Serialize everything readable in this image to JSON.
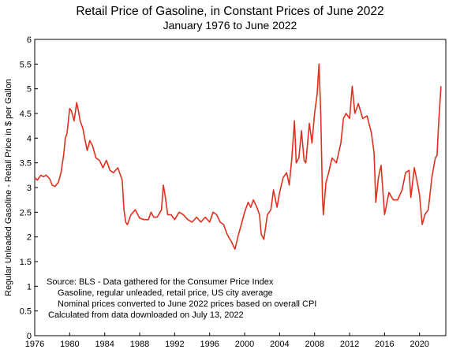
{
  "chart_data": {
    "type": "line",
    "title": "Retail Price of Gasoline, in Constant Prices of June 2022",
    "subtitle": "January 1976 to June 2022",
    "xlabel": "",
    "ylabel": "Regular Unleaded Gasoline - Retail Price in $ per Gallon",
    "xlim": [
      1976,
      2023
    ],
    "ylim": [
      0,
      6
    ],
    "x_ticks": [
      "1976",
      "1980",
      "1984",
      "1988",
      "1992",
      "1996",
      "2000",
      "2004",
      "2008",
      "2012",
      "2016",
      "2020"
    ],
    "y_ticks": [
      "0",
      "0.5",
      "1",
      "1.5",
      "2",
      "2.5",
      "3",
      "3.5",
      "4",
      "4.5",
      "5",
      "5.5",
      "6"
    ],
    "line_color": "#e0301e",
    "grid": false,
    "notes": [
      "Source:  BLS - Data gathered for the Consumer Price Index",
      "Gasoline, regular unleaded, retail price, US city average",
      "Nominal prices converted to June 2022 prices based on overall CPI",
      "Calculated from data downloaded on July 13, 2022"
    ],
    "series": [
      {
        "x": [
          1976.0,
          1976.3,
          1976.7,
          1977.0,
          1977.3,
          1977.7,
          1978.0,
          1978.3,
          1978.7,
          1979.0,
          1979.3,
          1979.5,
          1979.7,
          1980.0,
          1980.2,
          1980.5,
          1980.8,
          1981.0,
          1981.2,
          1981.5,
          1981.8,
          1982.0,
          1982.3,
          1982.6,
          1983.0,
          1983.4,
          1983.8,
          1984.2,
          1984.6,
          1985.0,
          1985.5,
          1986.0,
          1986.2,
          1986.4,
          1986.6,
          1987.0,
          1987.5,
          1988.0,
          1988.5,
          1989.0,
          1989.3,
          1989.6,
          1990.0,
          1990.5,
          1990.7,
          1990.9,
          1991.2,
          1991.6,
          1992.0,
          1992.5,
          1993.0,
          1993.5,
          1994.0,
          1994.5,
          1995.0,
          1995.5,
          1996.0,
          1996.4,
          1996.8,
          1997.2,
          1997.6,
          1998.0,
          1998.5,
          1998.9,
          1999.3,
          1999.7,
          2000.0,
          2000.4,
          2000.7,
          2001.0,
          2001.4,
          2001.7,
          2001.9,
          2002.2,
          2002.6,
          2003.0,
          2003.3,
          2003.7,
          2004.0,
          2004.4,
          2004.8,
          2005.1,
          2005.4,
          2005.7,
          2005.9,
          2006.2,
          2006.5,
          2006.8,
          2007.0,
          2007.4,
          2007.7,
          2008.0,
          2008.3,
          2008.5,
          2008.7,
          2008.9,
          2009.0,
          2009.3,
          2009.6,
          2010.0,
          2010.5,
          2011.0,
          2011.3,
          2011.6,
          2012.0,
          2012.3,
          2012.6,
          2013.0,
          2013.5,
          2014.0,
          2014.5,
          2014.8,
          2015.0,
          2015.3,
          2015.6,
          2016.0,
          2016.5,
          2017.0,
          2017.5,
          2018.0,
          2018.4,
          2018.8,
          2019.0,
          2019.4,
          2019.8,
          2020.0,
          2020.3,
          2020.6,
          2021.0,
          2021.4,
          2021.8,
          2022.0,
          2022.2,
          2022.45
        ],
        "y": [
          3.2,
          3.15,
          3.25,
          3.22,
          3.25,
          3.18,
          3.05,
          3.02,
          3.1,
          3.3,
          3.65,
          4.0,
          4.1,
          4.6,
          4.55,
          4.35,
          4.72,
          4.55,
          4.35,
          4.2,
          3.92,
          3.75,
          3.95,
          3.85,
          3.6,
          3.55,
          3.4,
          3.55,
          3.35,
          3.3,
          3.4,
          3.15,
          2.55,
          2.3,
          2.25,
          2.45,
          2.55,
          2.38,
          2.35,
          2.35,
          2.5,
          2.4,
          2.4,
          2.55,
          3.05,
          2.85,
          2.45,
          2.45,
          2.35,
          2.5,
          2.45,
          2.35,
          2.3,
          2.4,
          2.3,
          2.4,
          2.3,
          2.5,
          2.45,
          2.3,
          2.25,
          2.05,
          1.9,
          1.75,
          2.05,
          2.3,
          2.5,
          2.7,
          2.6,
          2.75,
          2.6,
          2.45,
          2.05,
          1.95,
          2.45,
          2.55,
          2.95,
          2.6,
          2.9,
          3.2,
          3.3,
          3.05,
          3.6,
          4.35,
          3.5,
          3.6,
          4.15,
          3.55,
          3.5,
          4.3,
          3.9,
          4.5,
          4.9,
          5.5,
          4.5,
          2.8,
          2.45,
          3.1,
          3.3,
          3.6,
          3.5,
          3.9,
          4.4,
          4.5,
          4.4,
          5.05,
          4.5,
          4.7,
          4.4,
          4.45,
          4.1,
          3.7,
          2.7,
          3.2,
          3.45,
          2.45,
          2.9,
          2.75,
          2.75,
          2.95,
          3.3,
          3.35,
          2.8,
          3.4,
          3.05,
          2.85,
          2.25,
          2.45,
          2.55,
          3.2,
          3.6,
          3.65,
          4.35,
          5.05
        ]
      }
    ]
  }
}
